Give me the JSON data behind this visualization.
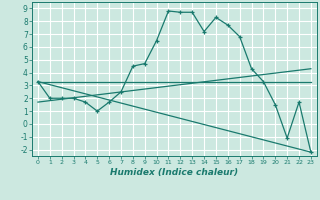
{
  "xlabel": "Humidex (Indice chaleur)",
  "bg_color": "#cce8e0",
  "line_color": "#1a7a6e",
  "grid_color": "#ffffff",
  "xlim": [
    -0.5,
    23.5
  ],
  "ylim": [
    -2.5,
    9.5
  ],
  "xticks": [
    0,
    1,
    2,
    3,
    4,
    5,
    6,
    7,
    8,
    9,
    10,
    11,
    12,
    13,
    14,
    15,
    16,
    17,
    18,
    19,
    20,
    21,
    22,
    23
  ],
  "yticks": [
    -2,
    -1,
    0,
    1,
    2,
    3,
    4,
    5,
    6,
    7,
    8,
    9
  ],
  "series": [
    [
      0,
      3.3
    ],
    [
      1,
      2.0
    ],
    [
      2,
      2.0
    ],
    [
      3,
      2.0
    ],
    [
      4,
      1.7
    ],
    [
      5,
      1.0
    ],
    [
      6,
      1.7
    ],
    [
      7,
      2.5
    ],
    [
      8,
      4.5
    ],
    [
      9,
      4.7
    ],
    [
      10,
      6.5
    ],
    [
      11,
      8.8
    ],
    [
      12,
      8.7
    ],
    [
      13,
      8.7
    ],
    [
      14,
      7.2
    ],
    [
      15,
      8.3
    ],
    [
      16,
      7.7
    ],
    [
      17,
      6.8
    ],
    [
      18,
      4.3
    ],
    [
      19,
      3.3
    ],
    [
      20,
      1.5
    ],
    [
      21,
      -1.1
    ],
    [
      22,
      1.7
    ],
    [
      23,
      -2.2
    ]
  ],
  "line2": [
    [
      0,
      3.3
    ],
    [
      23,
      -2.2
    ]
  ],
  "line3": [
    [
      0,
      3.3
    ],
    [
      23,
      3.3
    ]
  ],
  "line4": [
    [
      0,
      1.7
    ],
    [
      23,
      4.3
    ]
  ]
}
